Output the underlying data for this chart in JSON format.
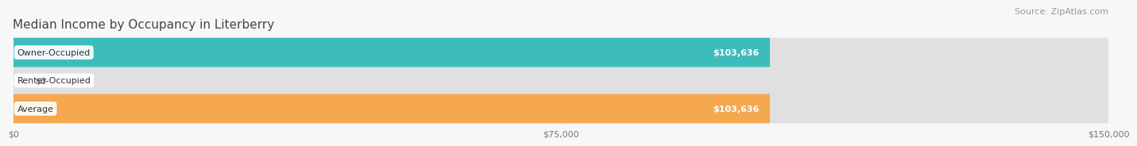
{
  "title": "Median Income by Occupancy in Literberry",
  "source": "Source: ZipAtlas.com",
  "categories": [
    "Owner-Occupied",
    "Renter-Occupied",
    "Average"
  ],
  "values": [
    103636,
    0,
    103636
  ],
  "bar_colors": [
    "#3dbcbc",
    "#b8a0cc",
    "#f5a84e"
  ],
  "bar_bg_color": "#e0e0e0",
  "label_texts": [
    "$103,636",
    "$0",
    "$103,636"
  ],
  "x_ticks": [
    0,
    75000,
    150000
  ],
  "x_tick_labels": [
    "$0",
    "$75,000",
    "$150,000"
  ],
  "xlim": [
    0,
    150000
  ],
  "title_fontsize": 11,
  "source_fontsize": 8,
  "label_fontsize": 8,
  "cat_fontsize": 8,
  "tick_fontsize": 8,
  "bg_color": "#f7f7f7",
  "row_alt_color_even": "#f7f7f7",
  "row_alt_color_odd": "#efefef",
  "bar_height": 0.52,
  "title_color": "#444444",
  "source_color": "#999999",
  "grid_color": "#d0d0d0"
}
